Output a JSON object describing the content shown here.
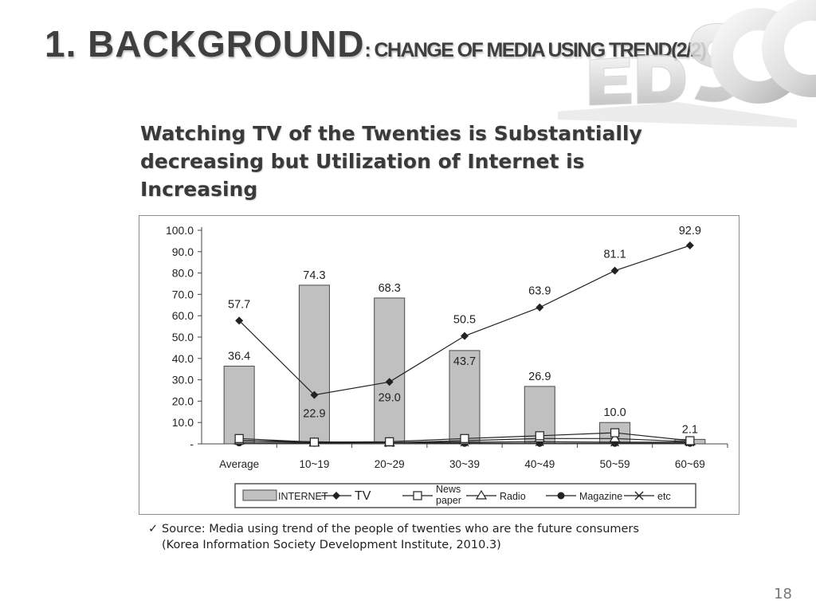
{
  "slide": {
    "title_main": "1. BACKGROUND",
    "title_sub": ": CHANGE OF MEDIA USING TREND(2/2)",
    "headline": "Watching TV of the Twenties is Substantially decreasing but Utilization of Internet is Increasing",
    "source_check": "✓",
    "source": "Source: Media using trend of the people of twenties who are the future consumers (Korea Information Society Development Institute, 2010.3)",
    "page_number": "18"
  },
  "colors": {
    "title": "#3f3f3f",
    "bar_fill": "#c0c0c0",
    "bar_stroke": "#4a4a4a",
    "line": "#222222"
  },
  "chart_data": {
    "type": "bar",
    "categories": [
      "Average",
      "10~19",
      "20~29",
      "30~39",
      "40~49",
      "50~59",
      "60~69"
    ],
    "y_ticks": [
      "100.0",
      "90.0",
      "80.0",
      "70.0",
      "60.0",
      "50.0",
      "40.0",
      "30.0",
      "20.0",
      "10.0",
      "-"
    ],
    "ylim": [
      0,
      100
    ],
    "grid": false,
    "legend_position": "bottom",
    "series": [
      {
        "name": "INTERNET",
        "kind": "bar",
        "marker": "none",
        "values": [
          36.4,
          74.3,
          68.3,
          43.7,
          26.9,
          10.0,
          2.1
        ],
        "labels": [
          "36.4",
          "74.3",
          "68.3",
          "43.7",
          "26.9",
          "10.0",
          "2.1"
        ]
      },
      {
        "name": "TV",
        "kind": "line",
        "marker": "diamond",
        "values": [
          57.7,
          22.9,
          29.0,
          50.5,
          63.9,
          81.1,
          92.9
        ],
        "labels": [
          "57.7",
          "22.9",
          "29.0",
          "50.5",
          "63.9",
          "81.1",
          "92.9"
        ]
      },
      {
        "name": "News paper",
        "kind": "line",
        "marker": "square",
        "values": [
          2.5,
          0.8,
          1.0,
          2.5,
          3.8,
          5.2,
          1.5
        ]
      },
      {
        "name": "Radio",
        "kind": "line",
        "marker": "triangle",
        "values": [
          1.5,
          0.5,
          0.5,
          1.5,
          2.5,
          2.5,
          1.0
        ]
      },
      {
        "name": "Magazine",
        "kind": "line",
        "marker": "circle",
        "values": [
          0.5,
          0.3,
          0.5,
          0.3,
          0.3,
          0.3,
          0.3
        ]
      },
      {
        "name": "etc",
        "kind": "line",
        "marker": "x",
        "values": [
          1.5,
          1.0,
          0.5,
          0.8,
          1.0,
          0.8,
          0.8
        ]
      }
    ]
  }
}
